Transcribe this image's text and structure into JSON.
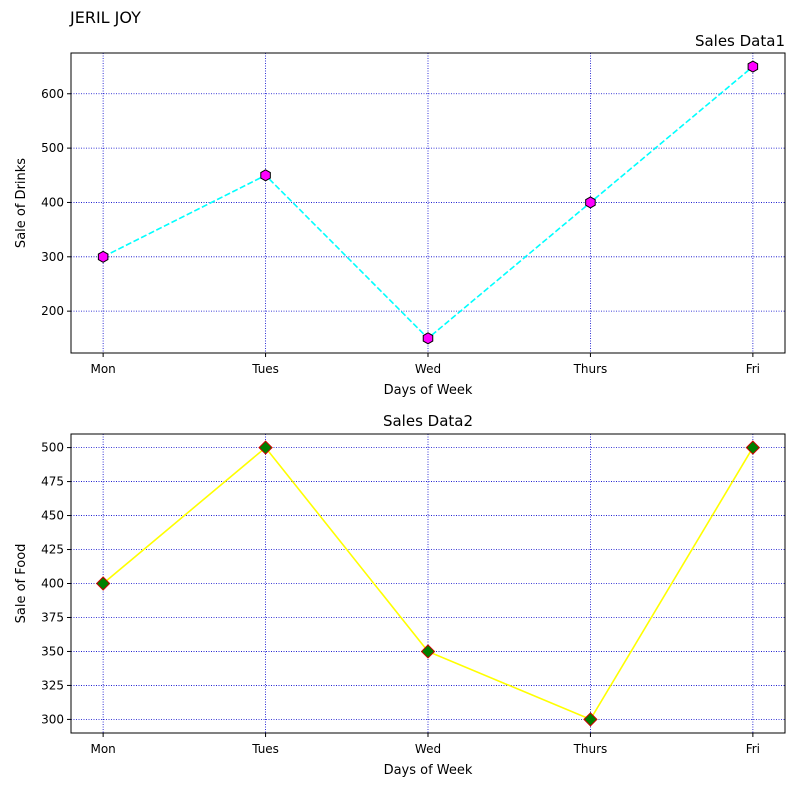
{
  "figure": {
    "suptitle": "JERIL JOY"
  },
  "chart_data": [
    {
      "type": "line",
      "title": "Sales Data1",
      "title_align": "right",
      "xlabel": "Days of Week",
      "ylabel": "Sale of Drinks",
      "categories": [
        "Mon",
        "Tues",
        "Wed",
        "Thurs",
        "Fri"
      ],
      "values": [
        300,
        450,
        150,
        400,
        650
      ],
      "ylim": [
        123,
        675
      ],
      "yticks": [
        200,
        300,
        400,
        500,
        600
      ],
      "grid": true,
      "grid_color": "#0000cc",
      "line_color": "#00ffff",
      "line_style": "dashed",
      "marker": "hexagon",
      "marker_face": "#ff00ff",
      "marker_edge": "#000000"
    },
    {
      "type": "line",
      "title": "Sales Data2",
      "title_align": "center",
      "xlabel": "Days of Week",
      "ylabel": "Sale of Food",
      "categories": [
        "Mon",
        "Tues",
        "Wed",
        "Thurs",
        "Fri"
      ],
      "values": [
        400,
        500,
        350,
        300,
        500
      ],
      "ylim": [
        290,
        510
      ],
      "yticks": [
        300,
        325,
        350,
        375,
        400,
        425,
        450,
        475,
        500
      ],
      "grid": true,
      "grid_color": "#0000cc",
      "line_color": "#ffff00",
      "line_style": "solid",
      "marker": "diamond",
      "marker_face": "#008000",
      "marker_edge": "#cc0000"
    }
  ]
}
